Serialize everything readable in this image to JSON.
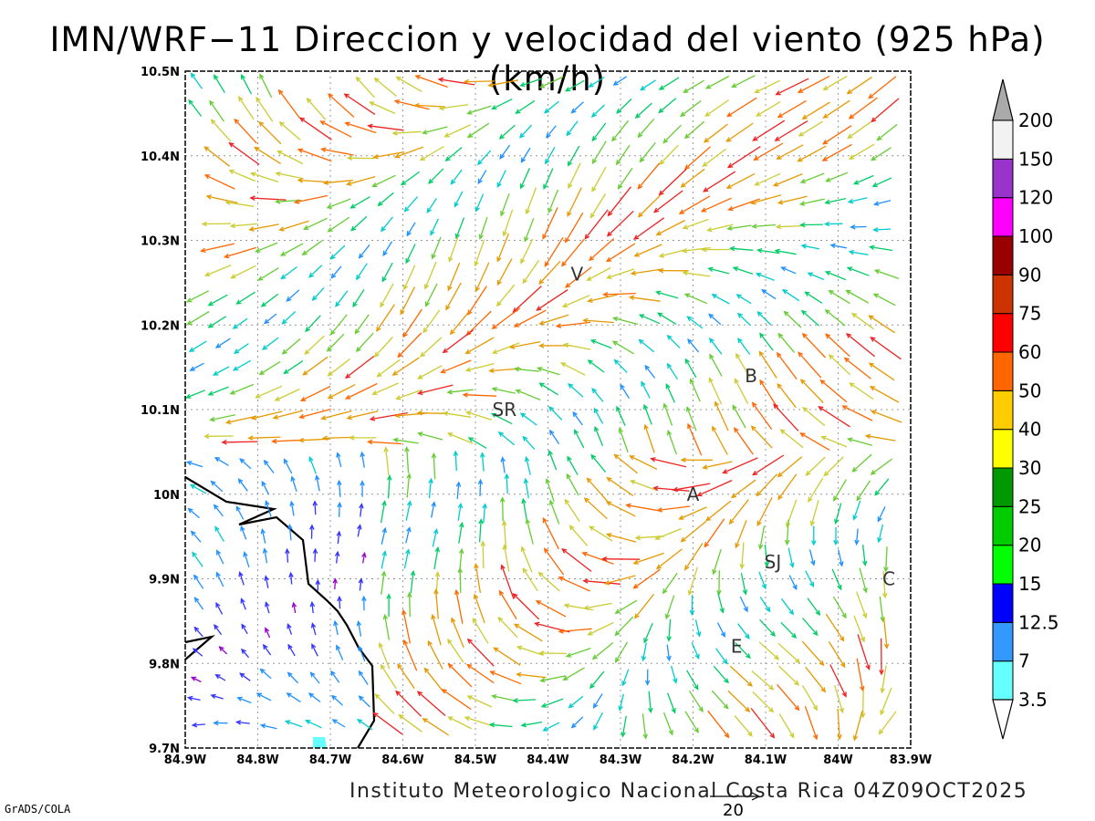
{
  "title": "IMN/WRF−11 Direccion y velocidad del viento (925 hPa)(km/h)",
  "footer": "Instituto Meteorologico Nacional Costa Rica 04Z09OCT2025",
  "credit": "GrADS/COLA",
  "reference_vector": {
    "label": "20",
    "speed": 20
  },
  "map": {
    "lon_range": [
      -84.9,
      -83.9
    ],
    "lat_range": [
      9.7,
      10.5
    ],
    "lon_ticks": [
      "84.9W",
      "84.8W",
      "84.7W",
      "84.6W",
      "84.5W",
      "84.4W",
      "84.3W",
      "84.2W",
      "84.1W",
      "84W",
      "83.9W"
    ],
    "lat_ticks": [
      "10.5N",
      "10.4N",
      "10.3N",
      "10.2N",
      "10.1N",
      "10N",
      "9.9N",
      "9.8N",
      "9.7N"
    ],
    "grid": "dotted",
    "sites": [
      {
        "label": "V",
        "lon": -84.36,
        "lat": 10.26
      },
      {
        "label": "B",
        "lon": -84.12,
        "lat": 10.14
      },
      {
        "label": "SR",
        "lon": -84.46,
        "lat": 10.1
      },
      {
        "label": "A",
        "lon": -84.2,
        "lat": 10.0
      },
      {
        "label": "SJ",
        "lon": -84.09,
        "lat": 9.92
      },
      {
        "label": "C",
        "lon": -83.93,
        "lat": 9.9
      },
      {
        "label": "E",
        "lon": -84.14,
        "lat": 9.82
      }
    ]
  },
  "colorbar": {
    "labels": [
      "3.5",
      "7",
      "12.5",
      "15",
      "20",
      "25",
      "30",
      "40",
      "50",
      "60",
      "75",
      "90",
      "100",
      "120",
      "150",
      "200"
    ],
    "colors": [
      "#66ffff",
      "#3399ff",
      "#0000ff",
      "#00ff00",
      "#00cc00",
      "#009900",
      "#ffff00",
      "#ffcc00",
      "#ff6600",
      "#ff0000",
      "#cc3300",
      "#990000",
      "#ff00ff",
      "#9933cc",
      "#f2f2f2"
    ],
    "top_triangle": "#aaaaaa",
    "bottom_triangle": "#ffffff"
  }
}
